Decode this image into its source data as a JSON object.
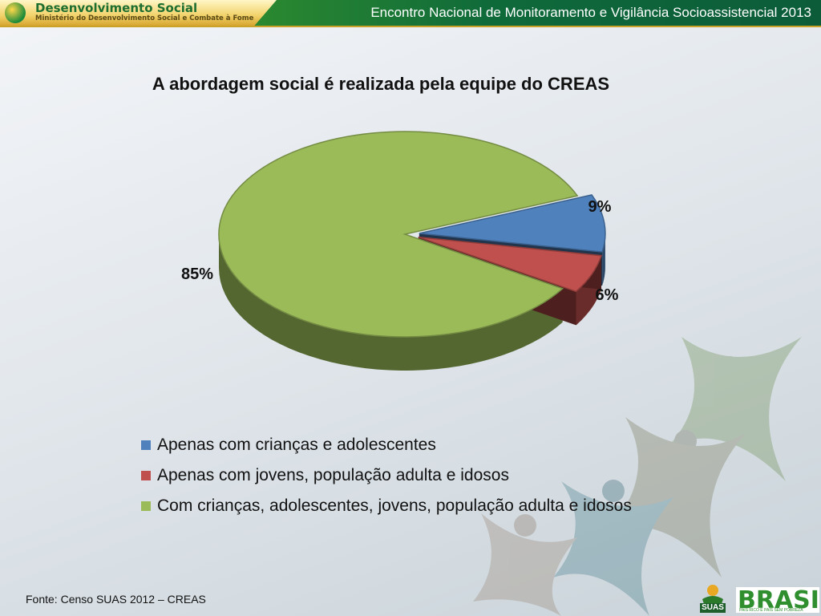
{
  "header": {
    "brand_title": "Desenvolvimento Social",
    "brand_subtitle": "Ministério do Desenvolvimento Social e Combate à Fome",
    "event_title": "Encontro Nacional de Monitoramento e Vigilância Socioassistencial 2013"
  },
  "chart_data": {
    "type": "pie",
    "title": "A abordagem social é realizada pela equipe do CREAS",
    "slices": [
      {
        "label": "Apenas com crianças e adolescentes",
        "value": 9,
        "display": "9%",
        "color": "#4f81bd"
      },
      {
        "label": "Apenas com jovens, população adulta e idosos",
        "value": 6,
        "display": "6%",
        "color": "#c0504d"
      },
      {
        "label": "Com crianças, adolescentes, jovens, população adulta e idosos",
        "value": 85,
        "display": "85%",
        "color": "#9bbb59"
      }
    ],
    "legend_placement": "bottom"
  },
  "footer": {
    "source": "Fonte: Censo SUAS 2012 – CREAS",
    "logo_suas_text": "SUAS",
    "logo_brasil_text": "BRASIL",
    "logo_brasil_tagline": "PAÍS RICO É PAÍS SEM POBREZA"
  },
  "colors": {
    "header_green": "#0f6a3a",
    "blue": "#4f81bd",
    "red": "#c0504d",
    "green": "#9bbb59"
  }
}
